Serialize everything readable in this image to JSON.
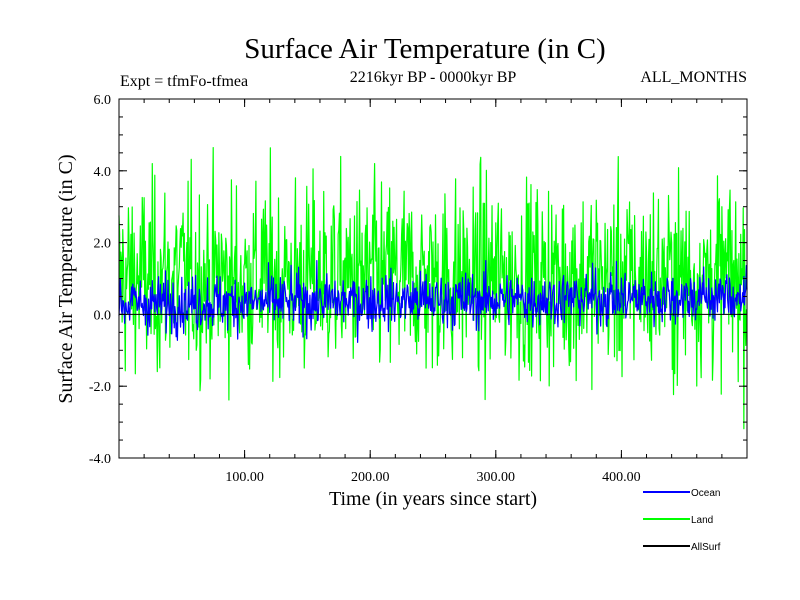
{
  "chart_data": {
    "type": "line",
    "title": "Surface Air Temperature (in C)",
    "subtitle": "2216kyr BP - 0000kyr BP",
    "left_label": "Expt = tfmFo-tfmea",
    "right_label": "ALL_MONTHS",
    "xlabel": "Time (in years since start)",
    "ylabel": "Surface Air Temperature (in C)",
    "xlim": [
      0,
      500
    ],
    "ylim": [
      -4,
      6
    ],
    "x_ticks": [
      100,
      200,
      300,
      400
    ],
    "x_tick_labels": [
      "100.00",
      "200.00",
      "300.00",
      "400.00"
    ],
    "y_ticks": [
      -4,
      -2,
      0,
      2,
      4,
      6
    ],
    "y_tick_labels": [
      "-4.0",
      "-2.0",
      "0.0",
      "2.0",
      "4.0",
      "6.0"
    ],
    "grid": false,
    "legend_position": "bottom-right",
    "series": [
      {
        "name": "Land",
        "color": "#00ff00",
        "mean": 1.0,
        "range_low": -3.3,
        "range_high": 5.0
      },
      {
        "name": "Ocean",
        "color": "#0000ff",
        "mean": 0.3,
        "range_low": -0.9,
        "range_high": 1.5
      },
      {
        "name": "AllSurf",
        "color": "#000000",
        "mean": 0.0,
        "range_low": 0.0,
        "range_high": 0.0
      }
    ],
    "legend": [
      {
        "name": "Ocean",
        "color": "#0000ff"
      },
      {
        "name": "Land",
        "color": "#00ff00"
      },
      {
        "name": "AllSurf",
        "color": "#000000"
      }
    ]
  }
}
